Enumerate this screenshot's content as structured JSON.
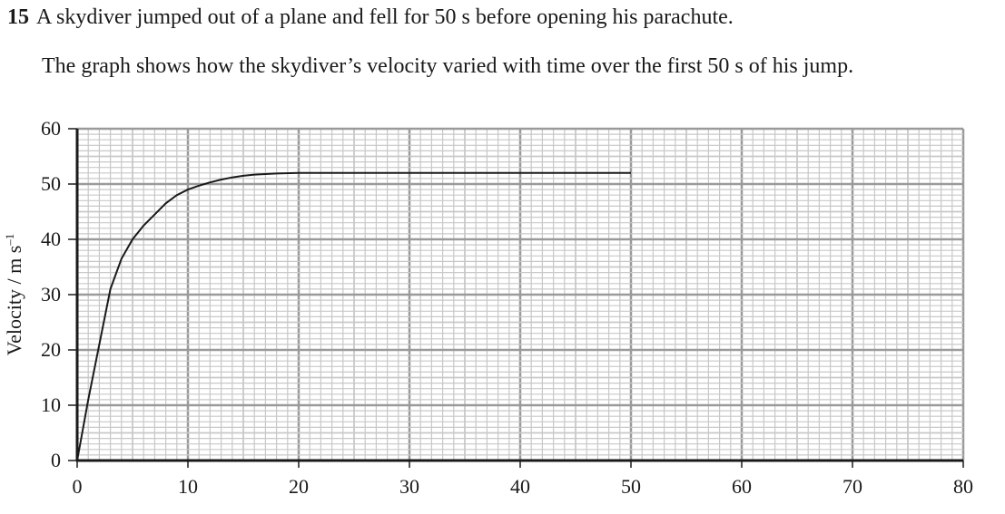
{
  "question": {
    "number": "15",
    "text": "A skydiver jumped out of a plane and fell for 50 s before opening his parachute.",
    "description": "The graph shows how the skydiver’s velocity varied with time over the first 50 s of his jump."
  },
  "chart_data": {
    "type": "line",
    "ylabel": "Velocity / m s",
    "ylabel_unit_exponent": "–1",
    "xlim": [
      0,
      80
    ],
    "ylim": [
      0,
      60
    ],
    "x_ticks": [
      "0",
      "10",
      "20",
      "30",
      "40",
      "50",
      "60",
      "70",
      "80"
    ],
    "y_ticks": [
      "0",
      "10",
      "20",
      "30",
      "40",
      "50",
      "60"
    ],
    "grid": true,
    "series": [
      {
        "x": [
          0,
          1,
          2,
          3,
          4,
          5,
          6,
          7,
          8,
          9,
          10,
          11,
          12,
          13,
          14,
          15,
          16,
          17,
          18,
          20,
          25,
          30,
          35,
          40,
          45,
          50
        ],
        "y": [
          0,
          11,
          21,
          31,
          36.5,
          40,
          42.5,
          44.5,
          46.5,
          48,
          49,
          49.7,
          50.3,
          50.8,
          51.2,
          51.5,
          51.7,
          51.8,
          51.9,
          52,
          52,
          52,
          52,
          52,
          52,
          52
        ]
      }
    ],
    "colors": {
      "curve": "#1a1a1a",
      "grid_minor": "#c8c8c8",
      "grid_major": "#9a9a9a",
      "axis": "#1a1a1a"
    }
  }
}
